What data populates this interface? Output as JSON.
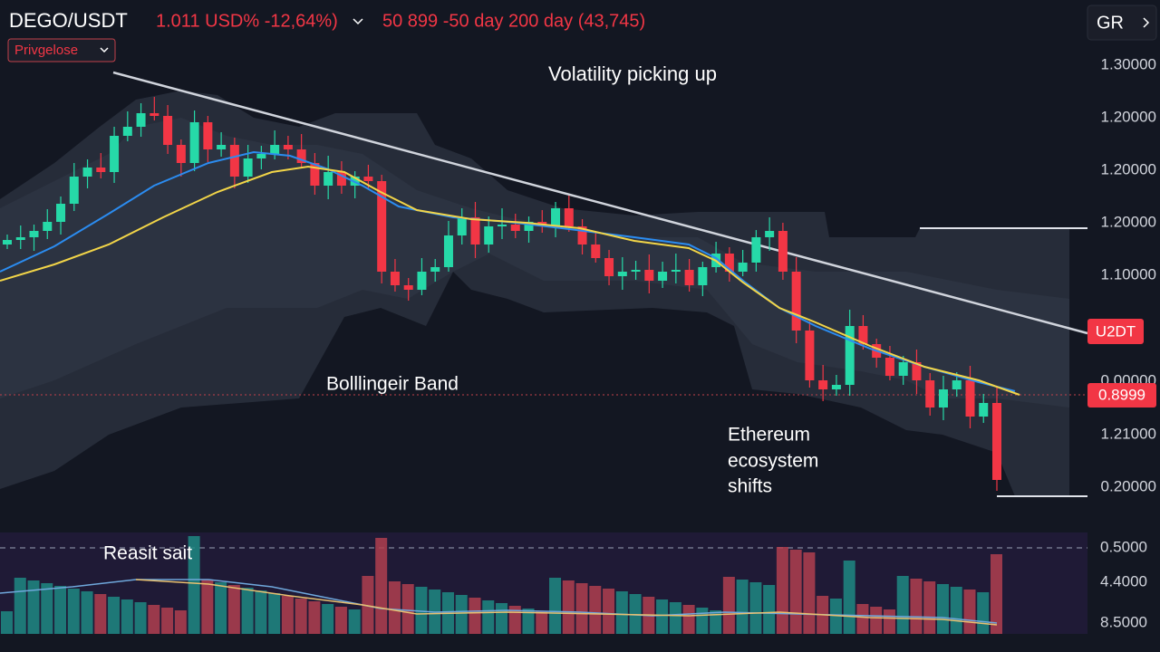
{
  "header": {
    "symbol": "DEGO/USDT",
    "price_change": "1.011 USD% -12,64%)",
    "indicators": "50 899 -50 day 200 day (43,745)",
    "dropdown": "Privgelose",
    "button": "GR"
  },
  "annotations": {
    "volatility": "Volatility picking up",
    "bollinger": "Bolllingeir Band",
    "ethereum": [
      "Ethereum",
      "ecosystem",
      "shifts"
    ],
    "lower_panel": "Reasit sait"
  },
  "price_axis": [
    "1.30000",
    "1.20000",
    "1.20000",
    "1.20000",
    "1.10000",
    "0.00000",
    "1.21000",
    "0.20000"
  ],
  "price_tags": [
    "U2DT",
    "0.8999"
  ],
  "volume_axis": [
    "0.5000",
    "4.4000",
    "8.5000"
  ]
}
